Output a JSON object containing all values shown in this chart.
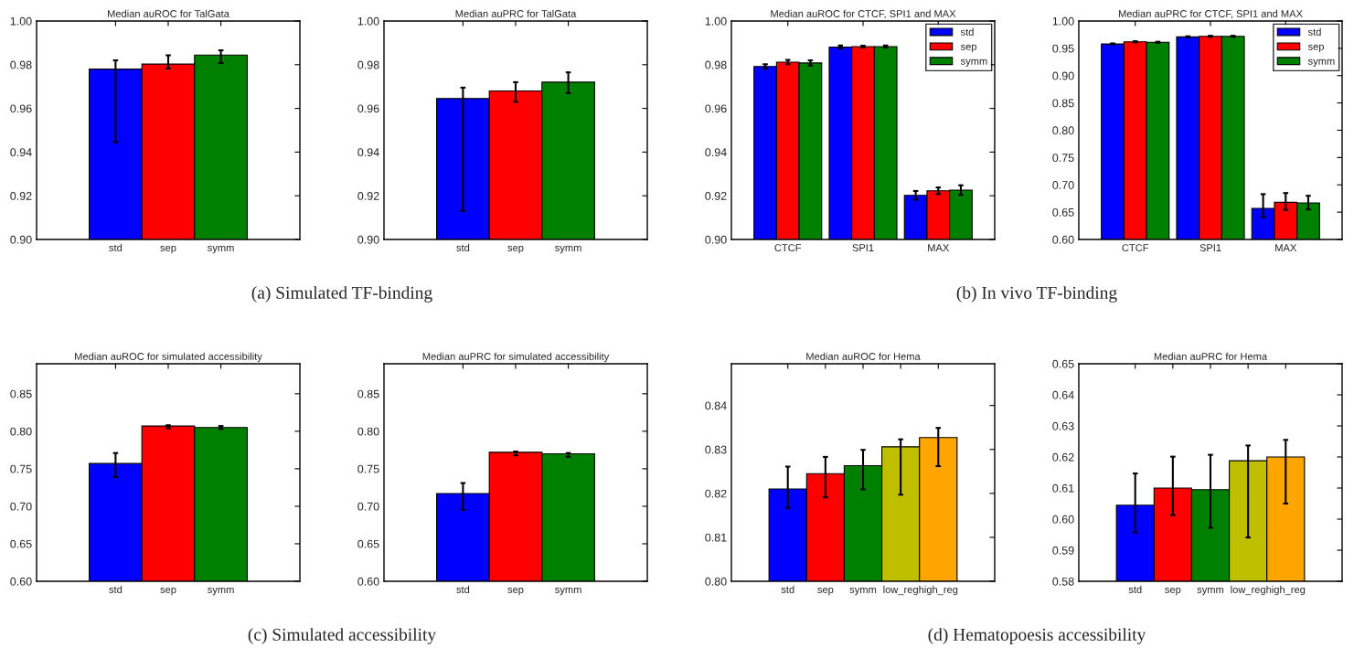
{
  "chart_data": [
    {
      "type": "bar",
      "title": "Median auROC for TalGata",
      "categories": [
        "std",
        "sep",
        "symm"
      ],
      "values": [
        0.978,
        0.9803,
        0.9844
      ],
      "colors": [
        "#0000ff",
        "#ff0000",
        "#008000"
      ],
      "errors": [
        [
          0.9445,
          0.982
        ],
        [
          0.9783,
          0.9843
        ],
        [
          0.9808,
          0.9866
        ]
      ],
      "ylim": [
        0.9,
        1.0
      ],
      "yticks": [
        {
          "value": 0.9,
          "label": "0.90"
        },
        0.92,
        0.94,
        0.96,
        0.98,
        {
          "value": 1.0,
          "label": "1.00"
        }
      ],
      "grid": false,
      "legend": false,
      "annotations": [
        "(a) Simulated TF-binding"
      ]
    },
    {
      "type": "bar",
      "title": "Median auPRC for TalGata",
      "categories": [
        "std",
        "sep",
        "symm"
      ],
      "values": [
        0.9645,
        0.968,
        0.972
      ],
      "colors": [
        "#0000ff",
        "#ff0000",
        "#008000"
      ],
      "errors": [
        [
          0.913,
          0.9695
        ],
        [
          0.963,
          0.972
        ],
        [
          0.967,
          0.9765
        ]
      ],
      "ylim": [
        0.9,
        1.0
      ],
      "yticks": [
        {
          "value": 0.9,
          "label": "0.90"
        },
        0.92,
        0.94,
        0.96,
        0.98,
        {
          "value": 1.0,
          "label": "1.00"
        }
      ],
      "grid": false,
      "legend": false
    },
    {
      "type": "bar",
      "title": "Median auROC for CTCF, SPI1 and MAX",
      "categories": [
        "CTCF",
        "SPI1",
        "MAX"
      ],
      "series": [
        {
          "name": "std",
          "color": "#0000ff",
          "values": [
            0.9792,
            0.9881,
            0.9202
          ],
          "errors": [
            0.001,
            0.0007,
            0.002
          ]
        },
        {
          "name": "sep",
          "color": "#ff0000",
          "values": [
            0.9812,
            0.9883,
            0.9223
          ],
          "errors": [
            0.001,
            0.0004,
            0.0015
          ]
        },
        {
          "name": "symm",
          "color": "#008000",
          "values": [
            0.9808,
            0.9883,
            0.9226
          ],
          "errors": [
            0.0012,
            0.0005,
            0.0022
          ]
        }
      ],
      "ylim": [
        0.9,
        1.0
      ],
      "yticks": [
        {
          "value": 0.9,
          "label": "0.90"
        },
        0.92,
        0.94,
        0.96,
        0.98,
        {
          "value": 1.0,
          "label": "1.00"
        }
      ],
      "grid": false,
      "legend": "top right",
      "annotations": [
        "(b) In vivo TF-binding"
      ]
    },
    {
      "type": "bar",
      "title": "Median auPRC for CTCF, SPI1 and MAX",
      "categories": [
        "CTCF",
        "SPI1",
        "MAX"
      ],
      "series": [
        {
          "name": "std",
          "color": "#0000ff",
          "values": [
            0.958,
            0.971,
            0.657
          ],
          "errors": [
            0.001,
            0.001,
            [
              0.641,
              0.683
            ]
          ]
        },
        {
          "name": "sep",
          "color": "#ff0000",
          "values": [
            0.962,
            0.972,
            0.668
          ],
          "errors": [
            0.001,
            0.001,
            [
              0.654,
              0.685
            ]
          ]
        },
        {
          "name": "symm",
          "color": "#008000",
          "values": [
            0.961,
            0.972,
            0.667
          ],
          "errors": [
            0.001,
            0.001,
            [
              0.655,
              0.68
            ]
          ]
        }
      ],
      "ylim": [
        0.6,
        1.0
      ],
      "yticks": [
        {
          "value": 0.6,
          "label": "0.60"
        },
        0.65,
        {
          "value": 0.7,
          "label": "0.70"
        },
        0.75,
        {
          "value": 0.8,
          "label": "0.80"
        },
        0.85,
        {
          "value": 0.9,
          "label": "0.90"
        },
        0.95,
        {
          "value": 1.0,
          "label": "1.00"
        }
      ],
      "grid": false,
      "legend": "top right"
    },
    {
      "type": "bar",
      "title": "Median auROC for simulated accessibility",
      "categories": [
        "std",
        "sep",
        "symm"
      ],
      "values": [
        0.757,
        0.807,
        0.805
      ],
      "colors": [
        "#0000ff",
        "#ff0000",
        "#008000"
      ],
      "errors": [
        [
          0.739,
          0.771
        ],
        [
          0.804,
          0.808
        ],
        [
          0.803,
          0.807
        ]
      ],
      "ylim": [
        0.6,
        0.89
      ],
      "yticks": [
        {
          "value": 0.6,
          "label": "0.60"
        },
        0.65,
        {
          "value": 0.7,
          "label": "0.70"
        },
        0.75,
        {
          "value": 0.8,
          "label": "0.80"
        },
        0.85
      ],
      "grid": false,
      "legend": false,
      "annotations": [
        "(c) Simulated accessibility"
      ]
    },
    {
      "type": "bar",
      "title": "Median auPRC for simulated accessibility",
      "categories": [
        "std",
        "sep",
        "symm"
      ],
      "values": [
        0.717,
        0.772,
        0.77
      ],
      "colors": [
        "#0000ff",
        "#ff0000",
        "#008000"
      ],
      "errors": [
        [
          0.695,
          0.731
        ],
        [
          0.768,
          0.773
        ],
        [
          0.766,
          0.771
        ]
      ],
      "ylim": [
        0.6,
        0.89
      ],
      "yticks": [
        {
          "value": 0.6,
          "label": "0.60"
        },
        0.65,
        {
          "value": 0.7,
          "label": "0.70"
        },
        0.75,
        {
          "value": 0.8,
          "label": "0.80"
        },
        0.85
      ],
      "grid": false,
      "legend": false
    },
    {
      "type": "bar",
      "title": "Median auROC for Hema",
      "categories": [
        "std",
        "sep",
        "symm",
        "low_reg",
        "high_reg"
      ],
      "values": [
        0.821,
        0.8245,
        0.8263,
        0.8306,
        0.8327
      ],
      "colors": [
        "#0000ff",
        "#ff0000",
        "#008000",
        "#bfbf00",
        "#ffa500"
      ],
      "errors": [
        [
          0.8167,
          0.8261
        ],
        [
          0.8191,
          0.8283
        ],
        [
          0.8209,
          0.8299
        ],
        [
          0.8197,
          0.8323
        ],
        [
          0.8262,
          0.8349
        ]
      ],
      "ylim": [
        0.8,
        0.8495
      ],
      "yticks": [
        {
          "value": 0.8,
          "label": "0.80"
        },
        0.81,
        0.82,
        0.83,
        0.84
      ],
      "grid": false,
      "legend": false,
      "annotations": [
        "(d) Hematopoesis accessibility"
      ]
    },
    {
      "type": "bar",
      "title": "Median auPRC for Hema",
      "categories": [
        "std",
        "sep",
        "symm",
        "low_reg",
        "high_reg"
      ],
      "values": [
        0.6045,
        0.61,
        0.6095,
        0.6188,
        0.62
      ],
      "colors": [
        "#0000ff",
        "#ff0000",
        "#008000",
        "#bfbf00",
        "#ffa500"
      ],
      "errors": [
        [
          0.5957,
          0.6147
        ],
        [
          0.6013,
          0.6201
        ],
        [
          0.5972,
          0.6207
        ],
        [
          0.5941,
          0.6237
        ],
        [
          0.605,
          0.6255
        ]
      ],
      "ylim": [
        0.58,
        0.65
      ],
      "yticks": [
        0.58,
        0.59,
        {
          "value": 0.6,
          "label": "0.60"
        },
        0.61,
        0.62,
        0.63,
        0.64,
        0.65
      ],
      "grid": false,
      "legend": false
    }
  ]
}
